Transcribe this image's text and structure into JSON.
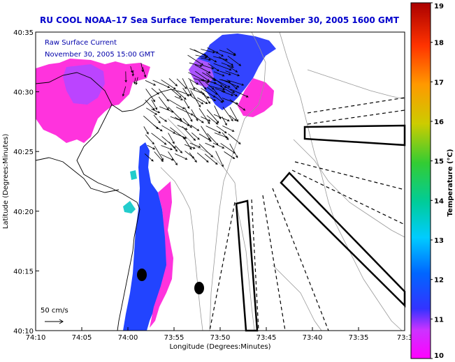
{
  "chart_data": {
    "type": "heatmap",
    "title": "RU COOL  NOAA–17  Sea Surface Temperature:  November 30, 2005 1600 GMT",
    "xlabel": "Longitude (Degrees:Minutes)",
    "ylabel": "Latitude (Degrees:Minutes)",
    "x_ticks": [
      "74:10",
      "74:05",
      "74:00",
      "73:55",
      "73:50",
      "73:45",
      "73:40",
      "73:35",
      "73:3"
    ],
    "y_ticks": [
      "40:35",
      "40:30",
      "40:25",
      "40:20",
      "40:15",
      "40:10"
    ],
    "xlim_deg": [
      -74.1667,
      -73.5
    ],
    "ylim_deg": [
      40.1667,
      40.5833
    ],
    "colorbar": {
      "label": "Temperature (°C)",
      "range": [
        10,
        19
      ],
      "ticks": [
        "10",
        "11",
        "12",
        "13",
        "14",
        "15",
        "16",
        "17",
        "18",
        "19"
      ],
      "colors": [
        "#ff00ff",
        "#cc33ff",
        "#3344ff",
        "#0099ff",
        "#00cccc",
        "#33cc66",
        "#cccc00",
        "#ff9900",
        "#ff3300",
        "#aa0000"
      ]
    },
    "legend_text": [
      "Raw Surface Current",
      "November 30, 2005 15:00 GMT"
    ],
    "scale_label": "50 cm/s",
    "land_color": "#ffffff",
    "sea_color": "#ffffff",
    "ship_lanes": "dashed",
    "buoys": 2
  }
}
